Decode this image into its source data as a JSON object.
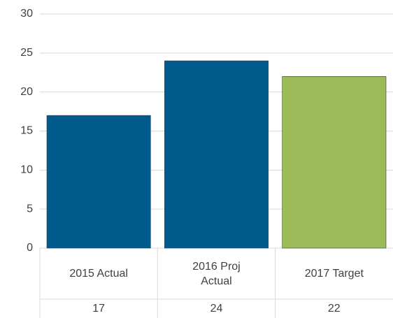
{
  "chart_data": {
    "type": "bar",
    "categories": [
      "2015 Actual",
      "2016 Proj Actual",
      "2017 Target"
    ],
    "values": [
      17,
      24,
      22
    ],
    "colors": [
      "#005a8c",
      "#005a8c",
      "#9bbb59"
    ],
    "ylim": [
      0,
      30
    ],
    "yticks": [
      0,
      5,
      10,
      15,
      20,
      25,
      30
    ],
    "grid": true,
    "data_table": true
  }
}
